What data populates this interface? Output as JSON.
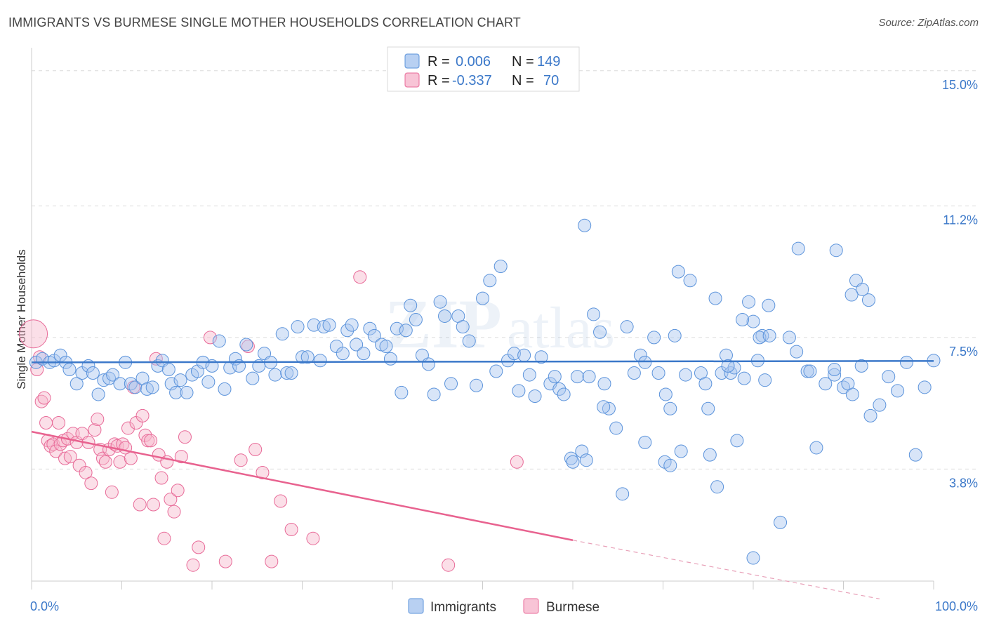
{
  "title": "IMMIGRANTS VS BURMESE SINGLE MOTHER HOUSEHOLDS CORRELATION CHART",
  "source": "Source: ZipAtlas.com",
  "watermark": {
    "zip": "ZIP",
    "atlas": "atlas"
  },
  "colors": {
    "immigrants": "#5b93db",
    "burmese": "#e86a98",
    "tick": "#3b78c9"
  },
  "chart_data": {
    "type": "scatter",
    "xlabel": "",
    "ylabel": "Single Mother Households",
    "xlim": [
      0,
      100
    ],
    "ylim": [
      0.65,
      15.45
    ],
    "x_tick_labels": [
      "0.0%",
      "100.0%"
    ],
    "y_ticks": [
      {
        "value": 15.0,
        "label": "15.0%"
      },
      {
        "value": 11.2,
        "label": "11.2%"
      },
      {
        "value": 7.5,
        "label": "7.5%"
      },
      {
        "value": 3.8,
        "label": "3.8%"
      }
    ],
    "legend": {
      "placement": "top-center",
      "rows": [
        {
          "r_label": "R =",
          "r_value": "0.006",
          "n_label": "N =",
          "n_value": "149"
        },
        {
          "r_label": "R =",
          "r_value": "-0.337",
          "n_label": "N =",
          "n_value": "70"
        }
      ]
    },
    "series": [
      {
        "name": "Immigrants",
        "color": "#5b93db",
        "trend": {
          "x0": 0,
          "y0": 6.8,
          "x1": 100,
          "y1": 6.84
        },
        "points": [
          [
            0.5,
            6.8
          ],
          [
            1.2,
            6.9
          ],
          [
            2.0,
            6.8
          ],
          [
            2.5,
            6.85
          ],
          [
            3.2,
            7.0
          ],
          [
            3.8,
            6.8
          ],
          [
            4.2,
            6.6
          ],
          [
            5.0,
            6.2
          ],
          [
            5.6,
            6.5
          ],
          [
            6.3,
            6.7
          ],
          [
            6.8,
            6.5
          ],
          [
            7.4,
            5.9
          ],
          [
            8.0,
            6.3
          ],
          [
            8.6,
            6.35
          ],
          [
            9.0,
            6.45
          ],
          [
            9.8,
            6.2
          ],
          [
            10.4,
            6.8
          ],
          [
            11.0,
            6.2
          ],
          [
            11.5,
            6.1
          ],
          [
            12.3,
            6.35
          ],
          [
            12.8,
            6.05
          ],
          [
            13.4,
            6.1
          ],
          [
            14.0,
            6.7
          ],
          [
            14.5,
            6.85
          ],
          [
            15.2,
            6.6
          ],
          [
            15.5,
            6.2
          ],
          [
            16.0,
            5.95
          ],
          [
            16.5,
            6.3
          ],
          [
            17.2,
            5.95
          ],
          [
            17.8,
            6.45
          ],
          [
            18.4,
            6.55
          ],
          [
            19.0,
            6.8
          ],
          [
            19.6,
            6.25
          ],
          [
            20.0,
            6.7
          ],
          [
            20.8,
            7.4
          ],
          [
            21.4,
            6.05
          ],
          [
            22.0,
            6.65
          ],
          [
            22.6,
            6.9
          ],
          [
            23.0,
            6.7
          ],
          [
            23.8,
            7.3
          ],
          [
            24.5,
            6.35
          ],
          [
            25.2,
            6.7
          ],
          [
            25.8,
            7.05
          ],
          [
            26.5,
            6.8
          ],
          [
            27.0,
            6.45
          ],
          [
            27.8,
            7.6
          ],
          [
            28.3,
            6.5
          ],
          [
            28.8,
            6.5
          ],
          [
            29.5,
            7.8
          ],
          [
            30.0,
            6.95
          ],
          [
            30.6,
            6.95
          ],
          [
            31.3,
            7.85
          ],
          [
            32.0,
            6.85
          ],
          [
            32.4,
            7.8
          ],
          [
            33.0,
            7.85
          ],
          [
            33.8,
            7.25
          ],
          [
            34.5,
            7.05
          ],
          [
            35.0,
            7.7
          ],
          [
            35.5,
            7.85
          ],
          [
            36.0,
            7.3
          ],
          [
            36.8,
            7.05
          ],
          [
            37.5,
            7.75
          ],
          [
            38.0,
            7.55
          ],
          [
            38.8,
            7.3
          ],
          [
            39.3,
            7.25
          ],
          [
            39.8,
            6.9
          ],
          [
            40.5,
            7.75
          ],
          [
            41.0,
            5.95
          ],
          [
            41.5,
            7.7
          ],
          [
            42.0,
            8.4
          ],
          [
            42.6,
            8.0
          ],
          [
            43.3,
            7.0
          ],
          [
            44.0,
            6.75
          ],
          [
            44.6,
            5.9
          ],
          [
            45.3,
            8.5
          ],
          [
            45.8,
            8.1
          ],
          [
            46.5,
            6.2
          ],
          [
            47.3,
            8.1
          ],
          [
            47.8,
            7.8
          ],
          [
            48.5,
            7.4
          ],
          [
            49.3,
            6.15
          ],
          [
            50.0,
            8.6
          ],
          [
            50.8,
            9.1
          ],
          [
            51.5,
            6.55
          ],
          [
            52.0,
            9.5
          ],
          [
            52.8,
            6.85
          ],
          [
            53.5,
            7.05
          ],
          [
            54.0,
            6.0
          ],
          [
            54.6,
            7.0
          ],
          [
            55.2,
            6.45
          ],
          [
            55.8,
            5.85
          ],
          [
            56.5,
            6.95
          ],
          [
            57.5,
            6.2
          ],
          [
            58.0,
            6.4
          ],
          [
            58.5,
            6.05
          ],
          [
            59.0,
            5.9
          ],
          [
            59.8,
            4.1
          ],
          [
            60.5,
            6.4
          ],
          [
            61.0,
            4.3
          ],
          [
            61.8,
            6.4
          ],
          [
            62.3,
            8.15
          ],
          [
            63.0,
            7.65
          ],
          [
            63.5,
            6.2
          ],
          [
            64.0,
            5.5
          ],
          [
            64.8,
            4.95
          ],
          [
            65.5,
            3.1
          ],
          [
            66.0,
            7.8
          ],
          [
            66.8,
            6.5
          ],
          [
            67.5,
            7.0
          ],
          [
            68.0,
            6.8
          ],
          [
            69.0,
            7.5
          ],
          [
            69.5,
            6.5
          ],
          [
            70.3,
            5.9
          ],
          [
            70.8,
            5.5
          ],
          [
            71.3,
            7.55
          ],
          [
            72.0,
            4.3
          ],
          [
            72.5,
            6.45
          ],
          [
            73.0,
            9.1
          ],
          [
            74.2,
            6.5
          ],
          [
            75.0,
            5.5
          ],
          [
            76.5,
            6.5
          ],
          [
            77.0,
            7.0
          ],
          [
            77.5,
            6.5
          ],
          [
            78.2,
            4.6
          ],
          [
            79.0,
            6.35
          ],
          [
            79.5,
            8.5
          ],
          [
            80.0,
            7.95
          ],
          [
            80.5,
            6.85
          ],
          [
            81.3,
            6.3
          ],
          [
            81.7,
            8.4
          ],
          [
            83.0,
            2.3
          ],
          [
            84.0,
            7.5
          ],
          [
            85.0,
            10.0
          ],
          [
            86.0,
            6.55
          ],
          [
            87.0,
            4.4
          ],
          [
            88.0,
            6.2
          ],
          [
            89.0,
            6.45
          ],
          [
            90.0,
            6.1
          ],
          [
            91.0,
            5.9
          ],
          [
            92.0,
            6.7
          ],
          [
            93.0,
            5.3
          ],
          [
            94.0,
            5.6
          ],
          [
            95.0,
            6.4
          ],
          [
            96.0,
            6.0
          ],
          [
            97.0,
            6.8
          ],
          [
            98.0,
            4.2
          ],
          [
            99.0,
            6.1
          ],
          [
            100.0,
            6.85
          ],
          [
            61.5,
            4.05
          ]
        ],
        "extra_points": [
          [
            61.3,
            10.65
          ],
          [
            71.7,
            9.35
          ],
          [
            89.2,
            9.95
          ],
          [
            91.4,
            9.1
          ],
          [
            92.1,
            8.85
          ],
          [
            90.9,
            8.7
          ],
          [
            92.8,
            8.55
          ],
          [
            75.8,
            8.6
          ],
          [
            78.8,
            8.0
          ],
          [
            81.0,
            7.55
          ],
          [
            84.8,
            7.1
          ],
          [
            86.3,
            6.55
          ],
          [
            89.0,
            6.6
          ],
          [
            90.5,
            6.2
          ],
          [
            74.7,
            6.2
          ],
          [
            77.9,
            6.65
          ],
          [
            80.7,
            7.5
          ],
          [
            81.8,
            7.55
          ],
          [
            63.4,
            5.55
          ],
          [
            68.0,
            4.55
          ],
          [
            70.2,
            4.0
          ],
          [
            60.0,
            4.0
          ],
          [
            70.8,
            3.9
          ],
          [
            75.2,
            4.2
          ],
          [
            76.0,
            3.3
          ],
          [
            80.0,
            1.3
          ],
          [
            77.2,
            6.7
          ]
        ]
      },
      {
        "name": "Burmese",
        "color": "#e86a98",
        "trend": {
          "x0": 0,
          "y0": 4.85,
          "x1": 60,
          "y1": 1.8,
          "dash_to_x": 94,
          "dash_to_y": 0.15
        },
        "points": [
          [
            0.2,
            7.6
          ],
          [
            0.6,
            6.6
          ],
          [
            0.9,
            6.95
          ],
          [
            1.1,
            5.7
          ],
          [
            1.4,
            5.8
          ],
          [
            1.6,
            5.1
          ],
          [
            1.8,
            4.6
          ],
          [
            2.1,
            4.45
          ],
          [
            2.4,
            4.5
          ],
          [
            2.7,
            4.3
          ],
          [
            3.0,
            5.1
          ],
          [
            3.2,
            4.5
          ],
          [
            3.5,
            4.6
          ],
          [
            3.7,
            4.1
          ],
          [
            4.0,
            4.65
          ],
          [
            4.3,
            4.15
          ],
          [
            4.6,
            4.8
          ],
          [
            5.0,
            4.55
          ],
          [
            5.3,
            3.9
          ],
          [
            5.6,
            4.8
          ],
          [
            6.0,
            3.7
          ],
          [
            6.3,
            4.55
          ],
          [
            6.6,
            3.4
          ],
          [
            7.0,
            4.9
          ],
          [
            7.3,
            5.2
          ],
          [
            7.6,
            4.35
          ],
          [
            7.9,
            4.1
          ],
          [
            8.2,
            4.0
          ],
          [
            8.6,
            4.35
          ],
          [
            8.9,
            3.15
          ],
          [
            9.2,
            4.5
          ],
          [
            9.5,
            4.45
          ],
          [
            9.8,
            4.0
          ],
          [
            10.1,
            4.5
          ],
          [
            10.4,
            4.4
          ],
          [
            10.7,
            4.95
          ],
          [
            11.0,
            4.1
          ],
          [
            11.3,
            6.1
          ],
          [
            11.6,
            5.1
          ],
          [
            12.0,
            2.8
          ],
          [
            12.3,
            5.3
          ],
          [
            12.6,
            4.75
          ],
          [
            12.9,
            4.6
          ],
          [
            13.2,
            4.6
          ],
          [
            13.5,
            2.8
          ],
          [
            13.8,
            6.9
          ],
          [
            14.1,
            4.2
          ],
          [
            14.4,
            3.55
          ],
          [
            14.7,
            1.85
          ],
          [
            15.0,
            4.0
          ],
          [
            15.4,
            2.95
          ],
          [
            15.8,
            2.6
          ],
          [
            16.2,
            3.2
          ],
          [
            16.6,
            4.15
          ],
          [
            17.0,
            4.7
          ],
          [
            17.9,
            1.1
          ],
          [
            18.5,
            1.6
          ],
          [
            19.8,
            7.5
          ],
          [
            21.5,
            1.2
          ],
          [
            23.2,
            4.05
          ],
          [
            24.0,
            7.25
          ],
          [
            24.8,
            4.35
          ],
          [
            25.6,
            3.7
          ],
          [
            26.6,
            1.2
          ],
          [
            27.6,
            2.9
          ],
          [
            28.8,
            2.1
          ],
          [
            31.2,
            1.85
          ],
          [
            36.4,
            9.2
          ],
          [
            53.8,
            4.0
          ],
          [
            46.2,
            1.1
          ]
        ]
      }
    ]
  },
  "bottom_legend": [
    "Immigrants",
    "Burmese"
  ]
}
